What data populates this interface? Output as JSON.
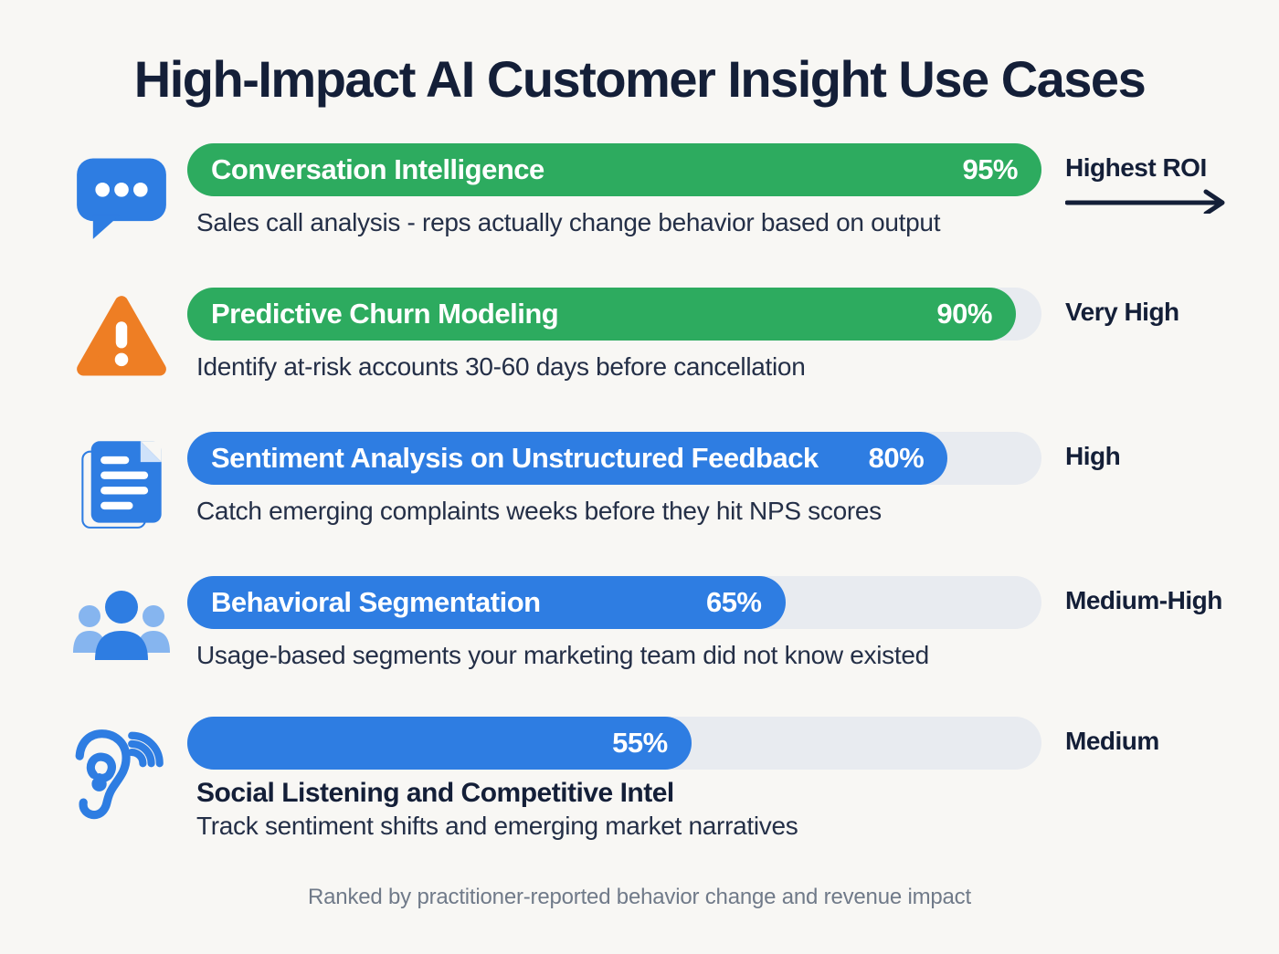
{
  "page": {
    "title": "High-Impact AI Customer Insight Use Cases",
    "footer": "Ranked by practitioner-reported behavior change and revenue impact"
  },
  "colors": {
    "background": "#f8f7f4",
    "bar_green": "#2dab5f",
    "bar_blue": "#2e7de2",
    "bar_track": "#e8ebf0",
    "heading_navy": "#141f38",
    "icon_blue": "#2e7de2",
    "icon_blue_light": "#86b5ef",
    "icon_orange": "#ee7e24",
    "footer_gray": "#707a89"
  },
  "rows": [
    {
      "icon": "chat-bubble-icon",
      "label": "Conversation Intelligence",
      "value_label": "95%",
      "value": 95,
      "bar_width_pct": 100,
      "bar_color": "#2dab5f",
      "rating": "Highest ROI",
      "rating_has_arrow": true,
      "description": "Sales call analysis - reps actually change behavior based on output"
    },
    {
      "icon": "warning-triangle-icon",
      "label": "Predictive Churn Modeling",
      "value_label": "90%",
      "value": 90,
      "bar_width_pct": 97,
      "bar_color": "#2dab5f",
      "rating": "Very High",
      "rating_has_arrow": false,
      "description": "Identify at-risk accounts 30-60 days before cancellation"
    },
    {
      "icon": "documents-icon",
      "label": "Sentiment Analysis on Unstructured Feedback",
      "value_label": "80%",
      "value": 80,
      "bar_width_pct": 89,
      "bar_color": "#2e7de2",
      "rating": "High",
      "rating_has_arrow": false,
      "description": "Catch emerging complaints weeks before they hit NPS scores"
    },
    {
      "icon": "people-group-icon",
      "label": "Behavioral Segmentation",
      "value_label": "65%",
      "value": 65,
      "bar_width_pct": 70,
      "bar_color": "#2e7de2",
      "rating": "Medium-High",
      "rating_has_arrow": false,
      "description": "Usage-based segments your marketing team did not know existed"
    },
    {
      "icon": "ear-listening-icon",
      "label": "",
      "title_below": "Social Listening and Competitive Intel",
      "value_label": "55%",
      "value": 55,
      "bar_width_pct": 59,
      "bar_color": "#2e7de2",
      "rating": "Medium",
      "rating_has_arrow": false,
      "description": "Track sentiment shifts and emerging market narratives"
    }
  ],
  "chart_data": {
    "type": "bar",
    "orientation": "horizontal",
    "title": "High-Impact AI Customer Insight Use Cases",
    "categories": [
      "Conversation Intelligence",
      "Predictive Churn Modeling",
      "Sentiment Analysis on Unstructured Feedback",
      "Behavioral Segmentation",
      "Social Listening and Competitive Intel"
    ],
    "values": [
      95,
      90,
      80,
      65,
      55
    ],
    "value_labels": [
      "95%",
      "90%",
      "80%",
      "65%",
      "55%"
    ],
    "ratings": [
      "Highest ROI",
      "Very High",
      "High",
      "Medium-High",
      "Medium"
    ],
    "descriptions": [
      "Sales call analysis - reps actually change behavior based on output",
      "Identify at-risk accounts 30-60 days before cancellation",
      "Catch emerging complaints weeks before they hit NPS scores",
      "Usage-based segments your marketing team did not know existed",
      "Track sentiment shifts and emerging market narratives"
    ],
    "bar_colors": [
      "#2dab5f",
      "#2dab5f",
      "#2e7de2",
      "#2e7de2",
      "#2e7de2"
    ],
    "xlim": [
      0,
      100
    ],
    "grid": false,
    "legend": false,
    "caption": "Ranked by practitioner-reported behavior change and revenue impact"
  }
}
